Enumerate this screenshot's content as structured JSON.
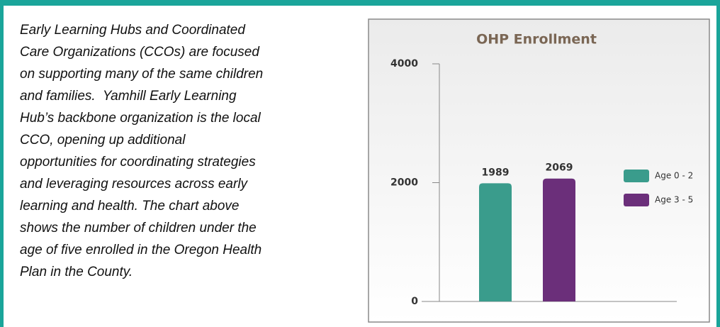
{
  "text": {
    "lines": [
      "Early Learning Hubs and Coordinated",
      "Care Organizations (CCOs) are focused",
      "on supporting many of the same children",
      "and families.  Yamhill Early Learning",
      "Hub’s backbone organization is the local",
      "CCO, opening up additional",
      "opportunities for coordinating strategies",
      "and leveraging resources across early",
      "learning and health. The chart above",
      "shows the number of children under the",
      "age of five enrolled in the Oregon Health",
      "Plan in the County."
    ]
  },
  "chart_data": {
    "type": "bar",
    "title": "OHP Enrollment",
    "series": [
      {
        "name": "Age 0 - 2",
        "color": "#3a9c8c",
        "values": [
          1989
        ]
      },
      {
        "name": "Age 3 - 5",
        "color": "#6b2f7a",
        "values": [
          2069
        ]
      }
    ],
    "ylim": [
      0,
      4000
    ],
    "yticks": [
      0,
      2000,
      4000
    ],
    "legend": "right"
  }
}
